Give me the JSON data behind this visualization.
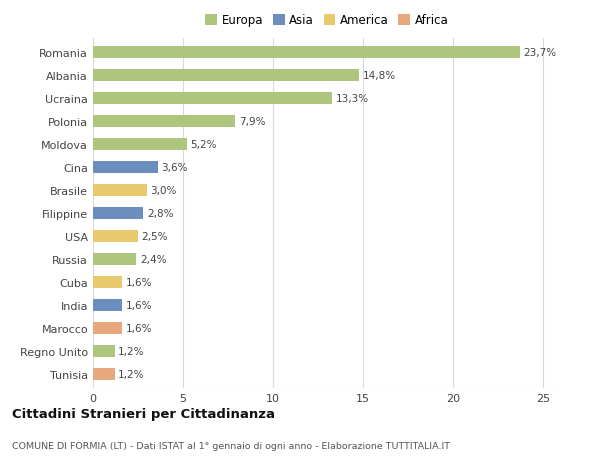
{
  "categories": [
    "Romania",
    "Albania",
    "Ucraina",
    "Polonia",
    "Moldova",
    "Cina",
    "Brasile",
    "Filippine",
    "USA",
    "Russia",
    "Cuba",
    "India",
    "Marocco",
    "Regno Unito",
    "Tunisia"
  ],
  "values": [
    23.7,
    14.8,
    13.3,
    7.9,
    5.2,
    3.6,
    3.0,
    2.8,
    2.5,
    2.4,
    1.6,
    1.6,
    1.6,
    1.2,
    1.2
  ],
  "labels": [
    "23,7%",
    "14,8%",
    "13,3%",
    "7,9%",
    "5,2%",
    "3,6%",
    "3,0%",
    "2,8%",
    "2,5%",
    "2,4%",
    "1,6%",
    "1,6%",
    "1,6%",
    "1,2%",
    "1,2%"
  ],
  "colors": [
    "#aec57e",
    "#aec57e",
    "#aec57e",
    "#aec57e",
    "#aec57e",
    "#6c8ebf",
    "#e8c96e",
    "#6c8ebf",
    "#e8c96e",
    "#aec57e",
    "#e8c96e",
    "#6c8ebf",
    "#e8a87e",
    "#aec57e",
    "#e8a87e"
  ],
  "legend": [
    {
      "label": "Europa",
      "color": "#aec57e"
    },
    {
      "label": "Asia",
      "color": "#6c8ebf"
    },
    {
      "label": "America",
      "color": "#e8c96e"
    },
    {
      "label": "Africa",
      "color": "#e8a87e"
    }
  ],
  "title1": "Cittadini Stranieri per Cittadinanza",
  "title2": "COMUNE DI FORMIA (LT) - Dati ISTAT al 1° gennaio di ogni anno - Elaborazione TUTTITALIA.IT",
  "xlim": [
    0,
    26
  ],
  "xticks": [
    0,
    5,
    10,
    15,
    20,
    25
  ],
  "bg_color": "#ffffff",
  "grid_color": "#d9d9d9",
  "bar_height": 0.55
}
